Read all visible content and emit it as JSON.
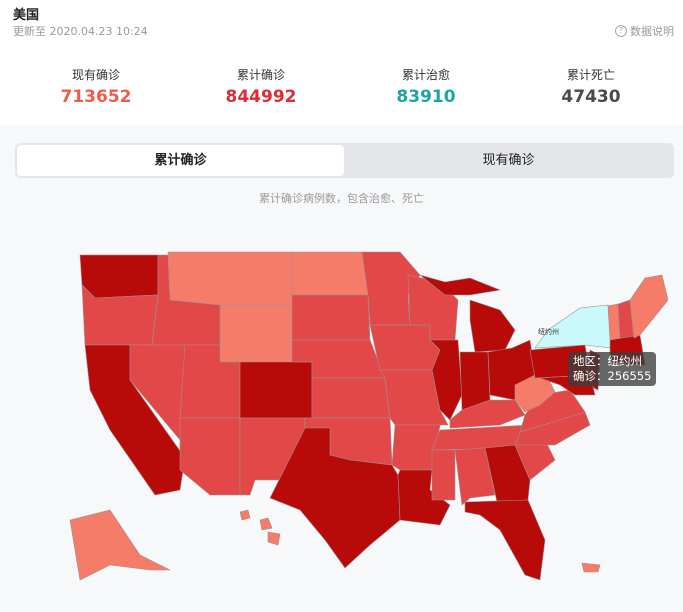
{
  "header": {
    "title": "美国",
    "updated": "更新至 2020.04.23 10:24",
    "explain_label": "数据说明",
    "explain_icon": "question-circle-icon"
  },
  "stats": [
    {
      "label": "现有确诊",
      "value": "713652",
      "color": "#f05a4b"
    },
    {
      "label": "累计确诊",
      "value": "844992",
      "color": "#e02b35"
    },
    {
      "label": "累计治愈",
      "value": "83910",
      "color": "#1ca5a8"
    },
    {
      "label": "累计死亡",
      "value": "47430",
      "color": "#4a4a4a"
    }
  ],
  "tabs": [
    {
      "label": "累计确诊",
      "active": true
    },
    {
      "label": "现有确诊",
      "active": false
    }
  ],
  "map": {
    "subtitle": "累计确诊病例数，包含治愈、死亡",
    "highlight_label": "纽约州",
    "tooltip": {
      "region_line": "地区：纽约州",
      "value_line": "确诊：256555"
    },
    "colors": {
      "level1": "#f67c6a",
      "level2": "#e34848",
      "level3": "#b90a0a",
      "highlight": "#c9f9fb",
      "border": "#9c8f8f"
    }
  }
}
